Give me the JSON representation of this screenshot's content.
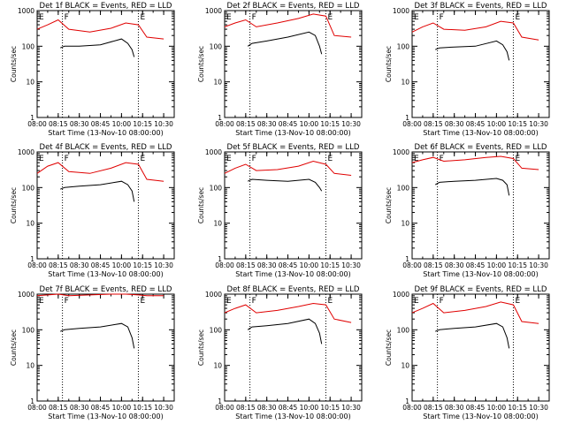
{
  "common": {
    "xlabel": "Start Time (13-Nov-10 08:00:00)",
    "ylabel": "Counts/sec",
    "x_ticks": [
      "08:00",
      "08:15",
      "08:30",
      "08:45",
      "10:00",
      "10:15",
      "10:30"
    ],
    "y_ticks": [
      "1",
      "10",
      "100",
      "1000"
    ],
    "ylim": [
      1,
      1000
    ],
    "y_scale": "log",
    "series_colors": {
      "events": "#000000",
      "lld": "#e00000"
    }
  },
  "chart_data": [
    {
      "type": "line",
      "title": "Det 1f BLACK = Events, RED = LLD",
      "vlines": [
        {
          "x": 1.2,
          "label": "F"
        },
        {
          "x": 4.8,
          "label": "E"
        }
      ],
      "corner_label": "E",
      "series": [
        {
          "x": [
            0,
            0.5,
            1.0,
            1.5,
            2.5,
            3.5,
            4.2,
            4.8,
            5.2,
            6.0
          ],
          "values": [
            300,
            400,
            550,
            300,
            250,
            320,
            450,
            400,
            180,
            160
          ]
        },
        {
          "x": [
            1.1,
            1.2,
            1.3,
            2.0,
            3.0,
            4.0,
            4.3,
            4.5,
            4.6
          ],
          "values": [
            90,
            95,
            100,
            100,
            110,
            160,
            120,
            80,
            50
          ]
        }
      ]
    },
    {
      "type": "line",
      "title": "Det 2f BLACK = Events, RED = LLD",
      "vlines": [
        {
          "x": 1.2,
          "label": "F"
        },
        {
          "x": 4.8,
          "label": "E"
        }
      ],
      "corner_label": "E",
      "series": [
        {
          "x": [
            0,
            0.5,
            1.0,
            1.5,
            2.5,
            3.5,
            4.2,
            4.8,
            5.2,
            6.0
          ],
          "values": [
            350,
            450,
            550,
            350,
            450,
            600,
            800,
            700,
            200,
            180
          ]
        },
        {
          "x": [
            1.1,
            1.2,
            1.3,
            2.0,
            3.0,
            4.0,
            4.3,
            4.5,
            4.6
          ],
          "values": [
            100,
            110,
            120,
            140,
            180,
            250,
            200,
            100,
            60
          ]
        }
      ]
    },
    {
      "type": "line",
      "title": "Det 3f BLACK = Events, RED = LLD",
      "vlines": [
        {
          "x": 1.2,
          "label": "F"
        },
        {
          "x": 4.8,
          "label": "E"
        }
      ],
      "corner_label": "E",
      "series": [
        {
          "x": [
            0,
            0.5,
            1.0,
            1.5,
            2.5,
            3.5,
            4.2,
            4.8,
            5.2,
            6.0
          ],
          "values": [
            250,
            350,
            450,
            300,
            280,
            350,
            500,
            450,
            180,
            150
          ]
        },
        {
          "x": [
            1.1,
            1.2,
            1.3,
            2.0,
            3.0,
            4.0,
            4.3,
            4.5,
            4.6
          ],
          "values": [
            80,
            85,
            90,
            95,
            100,
            140,
            110,
            70,
            40
          ]
        }
      ]
    },
    {
      "type": "line",
      "title": "Det 4f BLACK = Events, RED = LLD",
      "vlines": [
        {
          "x": 1.2,
          "label": "F"
        },
        {
          "x": 4.8,
          "label": "E"
        }
      ],
      "corner_label": "E",
      "series": [
        {
          "x": [
            0,
            0.5,
            1.0,
            1.5,
            2.5,
            3.5,
            4.2,
            4.8,
            5.2,
            6.0
          ],
          "values": [
            250,
            400,
            500,
            280,
            250,
            350,
            500,
            450,
            170,
            150
          ]
        },
        {
          "x": [
            1.1,
            1.2,
            1.3,
            2.0,
            3.0,
            4.0,
            4.3,
            4.5,
            4.6
          ],
          "values": [
            90,
            95,
            100,
            110,
            120,
            150,
            120,
            80,
            40
          ]
        }
      ]
    },
    {
      "type": "line",
      "title": "Det 5f BLACK = Events, RED = LLD",
      "vlines": [
        {
          "x": 1.2,
          "label": "F"
        },
        {
          "x": 4.8,
          "label": "E"
        }
      ],
      "corner_label": "E",
      "series": [
        {
          "x": [
            0,
            0.5,
            1.0,
            1.5,
            2.5,
            3.5,
            4.2,
            4.8,
            5.2,
            6.0
          ],
          "values": [
            250,
            350,
            450,
            300,
            320,
            400,
            550,
            450,
            250,
            220
          ]
        },
        {
          "x": [
            1.1,
            1.2,
            1.3,
            2.0,
            3.0,
            4.0,
            4.3,
            4.5,
            4.6
          ],
          "values": [
            150,
            160,
            170,
            160,
            150,
            170,
            140,
            100,
            80
          ]
        }
      ]
    },
    {
      "type": "line",
      "title": "Det 6f BLACK = Events, RED = LLD",
      "vlines": [
        {
          "x": 1.2,
          "label": "F"
        },
        {
          "x": 4.8,
          "label": "E"
        }
      ],
      "corner_label": "E",
      "series": [
        {
          "x": [
            0,
            0.5,
            1.0,
            1.5,
            2.5,
            3.5,
            4.2,
            4.8,
            5.2,
            6.0
          ],
          "values": [
            500,
            600,
            700,
            550,
            600,
            700,
            750,
            650,
            350,
            320
          ]
        },
        {
          "x": [
            1.1,
            1.2,
            1.3,
            2.0,
            3.0,
            4.0,
            4.3,
            4.5,
            4.6
          ],
          "values": [
            120,
            130,
            140,
            150,
            160,
            180,
            160,
            120,
            60
          ]
        }
      ]
    },
    {
      "type": "line",
      "title": "Det 7f BLACK = Events, RED = LLD",
      "vlines": [
        {
          "x": 1.2,
          "label": "F"
        },
        {
          "x": 4.8,
          "label": "E"
        }
      ],
      "corner_label": "E",
      "series": [
        {
          "x": [
            0,
            0.5,
            1.0,
            1.5,
            2.5,
            3.5,
            4.2,
            4.8,
            5.2,
            6.0
          ],
          "values": [
            900,
            950,
            1000,
            900,
            950,
            1000,
            1000,
            950,
            900,
            900
          ]
        },
        {
          "x": [
            1.1,
            1.2,
            1.3,
            2.0,
            3.0,
            4.0,
            4.3,
            4.5,
            4.6
          ],
          "values": [
            90,
            95,
            100,
            110,
            120,
            150,
            120,
            60,
            30
          ]
        }
      ]
    },
    {
      "type": "line",
      "title": "Det 8f BLACK = Events, RED = LLD",
      "vlines": [
        {
          "x": 1.2,
          "label": "F"
        },
        {
          "x": 4.8,
          "label": "E"
        }
      ],
      "corner_label": "E",
      "series": [
        {
          "x": [
            0,
            0.5,
            1.0,
            1.5,
            2.5,
            3.5,
            4.2,
            4.8,
            5.2,
            6.0
          ],
          "values": [
            300,
            400,
            500,
            300,
            350,
            450,
            550,
            500,
            200,
            160
          ]
        },
        {
          "x": [
            1.1,
            1.2,
            1.3,
            2.0,
            3.0,
            4.0,
            4.3,
            4.5,
            4.6
          ],
          "values": [
            100,
            110,
            120,
            130,
            150,
            200,
            150,
            80,
            40
          ]
        }
      ]
    },
    {
      "type": "line",
      "title": "Det 9f BLACK = Events, RED = LLD",
      "vlines": [
        {
          "x": 1.2,
          "label": "F"
        },
        {
          "x": 4.8,
          "label": "E"
        }
      ],
      "corner_label": "E",
      "series": [
        {
          "x": [
            0,
            0.5,
            1.0,
            1.5,
            2.5,
            3.5,
            4.2,
            4.8,
            5.2,
            6.0
          ],
          "values": [
            300,
            400,
            550,
            300,
            350,
            450,
            600,
            500,
            170,
            150
          ]
        },
        {
          "x": [
            1.1,
            1.2,
            1.3,
            2.0,
            3.0,
            4.0,
            4.3,
            4.5,
            4.6
          ],
          "values": [
            90,
            95,
            100,
            110,
            120,
            150,
            120,
            60,
            30
          ]
        }
      ]
    }
  ]
}
